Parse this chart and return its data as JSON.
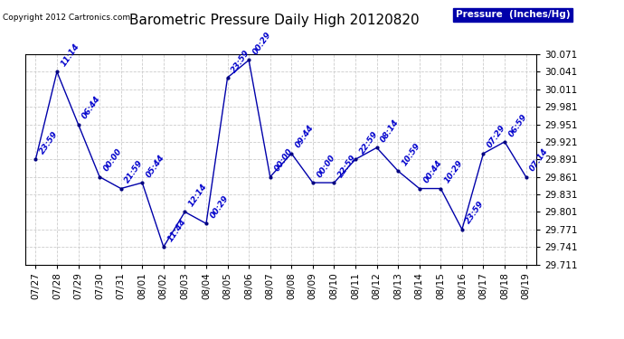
{
  "title": "Barometric Pressure Daily High 20120820",
  "copyright": "Copyright 2012 Cartronics.com",
  "legend_label": "Pressure  (Inches/Hg)",
  "x_labels": [
    "07/27",
    "07/28",
    "07/29",
    "07/30",
    "07/31",
    "08/01",
    "08/02",
    "08/03",
    "08/04",
    "08/05",
    "08/06",
    "08/07",
    "08/08",
    "08/09",
    "08/10",
    "08/11",
    "08/12",
    "08/13",
    "08/14",
    "08/15",
    "08/16",
    "08/17",
    "08/18",
    "08/19"
  ],
  "y_values": [
    29.891,
    30.041,
    29.951,
    29.861,
    29.841,
    29.851,
    29.741,
    29.801,
    29.781,
    30.031,
    30.061,
    29.861,
    29.901,
    29.851,
    29.851,
    29.891,
    29.911,
    29.871,
    29.841,
    29.841,
    29.771,
    29.901,
    29.921,
    29.861
  ],
  "point_labels": [
    "23:59",
    "11:14",
    "06:44",
    "00:00",
    "21:59",
    "05:44",
    "11:44",
    "12:14",
    "00:29",
    "23:59",
    "00:29",
    "00:00",
    "09:44",
    "00:00",
    "22:59",
    "22:59",
    "08:14",
    "10:59",
    "00:44",
    "10:29",
    "23:59",
    "07:29",
    "06:59",
    "07:14"
  ],
  "ylim_min": 29.711,
  "ylim_max": 30.071,
  "y_ticks": [
    29.711,
    29.741,
    29.771,
    29.801,
    29.831,
    29.861,
    29.891,
    29.921,
    29.951,
    29.981,
    30.011,
    30.041,
    30.071
  ],
  "line_color": "#0000aa",
  "marker_color": "#000080",
  "background_color": "#ffffff",
  "grid_color": "#cccccc",
  "label_color": "#0000cc",
  "title_color": "#000000",
  "legend_bg": "#0000aa",
  "legend_fg": "#ffffff"
}
